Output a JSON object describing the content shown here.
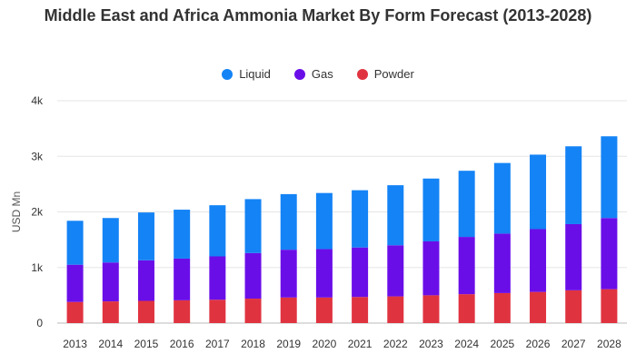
{
  "chart_data": {
    "type": "bar",
    "stacked": true,
    "title": "Middle East and Africa Ammonia Market By Form Forecast (2013-2028)",
    "ylabel": "USD Mn",
    "xlabel": "",
    "ylim": [
      0,
      4000
    ],
    "yticks": [
      0,
      1000,
      2000,
      3000,
      4000
    ],
    "ytick_labels": [
      "0",
      "1k",
      "2k",
      "3k",
      "4k"
    ],
    "grid": true,
    "legend_position": "top",
    "categories": [
      "2013",
      "2014",
      "2015",
      "2016",
      "2017",
      "2018",
      "2019",
      "2020",
      "2021",
      "2022",
      "2023",
      "2024",
      "2025",
      "2026",
      "2027",
      "2028"
    ],
    "series": [
      {
        "name": "Powder",
        "color": "#e03340",
        "values": [
          380,
          390,
          400,
          410,
          420,
          440,
          460,
          460,
          470,
          480,
          500,
          520,
          540,
          560,
          590,
          610
        ]
      },
      {
        "name": "Gas",
        "color": "#6a0ee8",
        "values": [
          670,
          700,
          730,
          750,
          780,
          820,
          860,
          870,
          890,
          920,
          970,
          1030,
          1070,
          1130,
          1190,
          1280
        ]
      },
      {
        "name": "Liquid",
        "color": "#1483f5",
        "values": [
          790,
          800,
          860,
          880,
          920,
          970,
          1000,
          1010,
          1030,
          1080,
          1130,
          1190,
          1270,
          1340,
          1400,
          1470
        ]
      }
    ],
    "legend_order": [
      "Liquid",
      "Gas",
      "Powder"
    ]
  }
}
